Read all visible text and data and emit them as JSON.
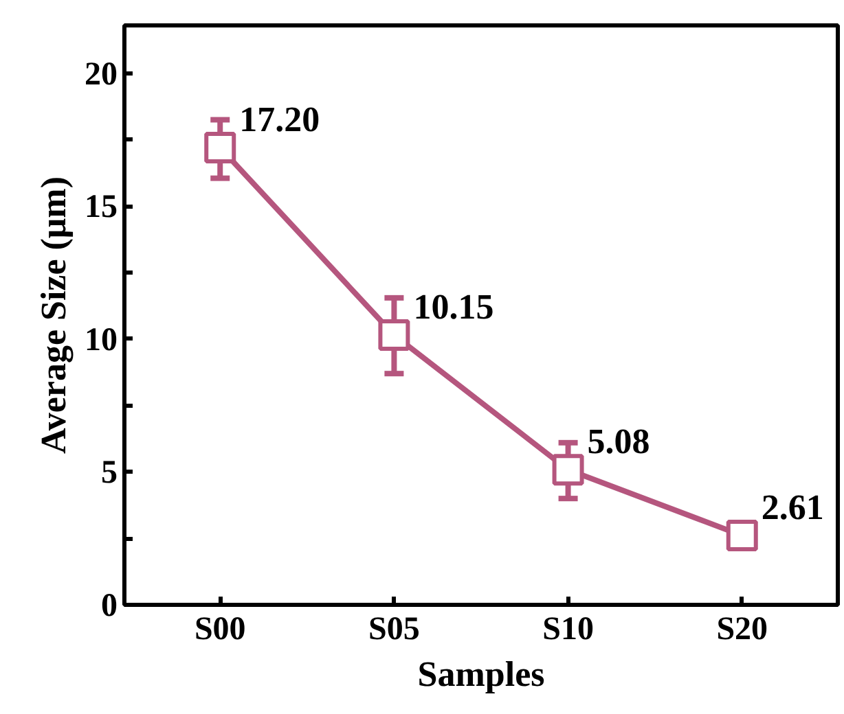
{
  "chart_data": {
    "type": "line",
    "xlabel": "Samples",
    "ylabel": "Average Size (μm)",
    "categories": [
      "S00",
      "S05",
      "S10",
      "S20"
    ],
    "series": [
      {
        "color": "#b5567e",
        "values": [
          17.2,
          10.15,
          5.08,
          2.61
        ],
        "value_labels": [
          "17.20",
          "10.15",
          "5.08",
          "2.61"
        ],
        "errors": [
          [
            16.05,
            18.25
          ],
          [
            8.7,
            11.55
          ],
          [
            4.0,
            6.1
          ],
          [
            2.3,
            2.95
          ]
        ]
      }
    ],
    "ylim": [
      0,
      21.8
    ],
    "yticks": [
      0,
      {
        "value": 2.5,
        "label": null
      },
      5,
      {
        "value": 7.5,
        "label": null
      },
      10,
      {
        "value": 12.5,
        "label": null
      },
      15,
      {
        "value": 17.5,
        "label": null
      },
      20
    ],
    "marker": "square",
    "line_style": "solid",
    "grid": false
  }
}
